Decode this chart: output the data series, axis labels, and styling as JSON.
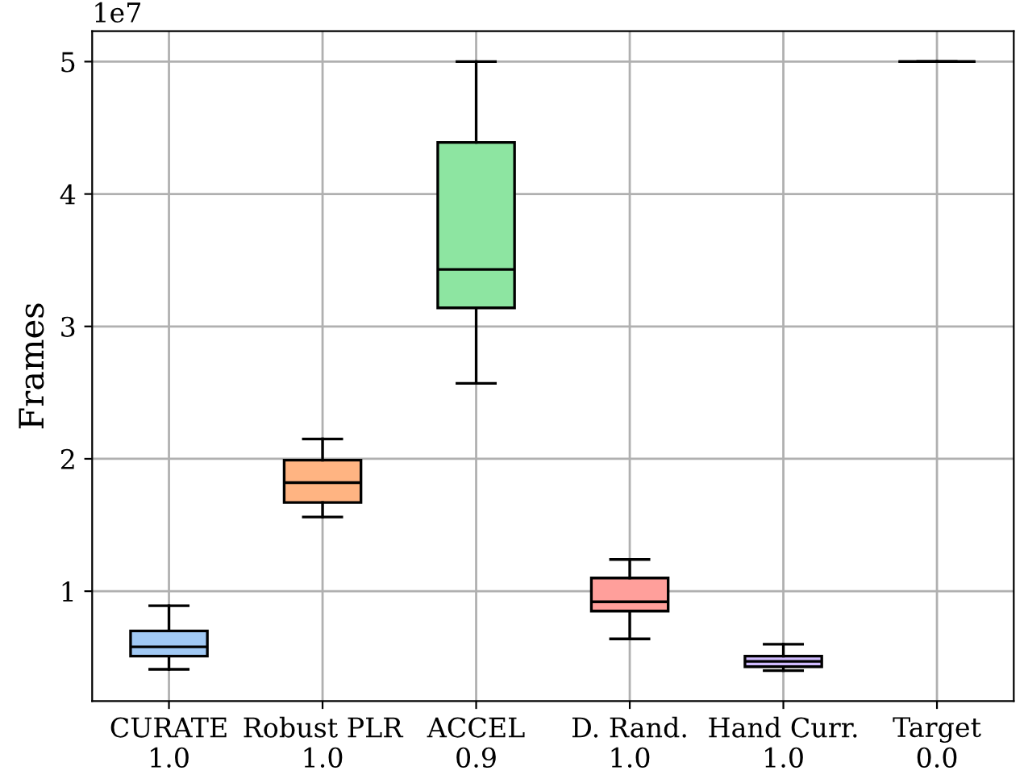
{
  "chart_data": {
    "type": "box",
    "ylabel": "Frames",
    "annotations": [
      "1e7"
    ],
    "categories": [
      "CURATE\n1.0",
      "Robust PLR\n1.0",
      "ACCEL\n0.9",
      "D. Rand.\n1.0",
      "Hand Curr.\n1.0",
      "Target\n0.0"
    ],
    "colors": [
      "#a1c9f4",
      "#ffb482",
      "#8de5a1",
      "#ff9f9b",
      "#d0bbff",
      null
    ],
    "boxes": [
      {
        "low": 0.41,
        "q1": 0.51,
        "median": 0.58,
        "q3": 0.7,
        "high": 0.89
      },
      {
        "low": 1.56,
        "q1": 1.67,
        "median": 1.82,
        "q3": 1.99,
        "high": 2.15
      },
      {
        "low": 2.57,
        "q1": 3.14,
        "median": 3.43,
        "q3": 4.39,
        "high": 5.0
      },
      {
        "low": 0.64,
        "q1": 0.85,
        "median": 0.92,
        "q3": 1.1,
        "high": 1.24
      },
      {
        "low": 0.4,
        "q1": 0.43,
        "median": 0.47,
        "q3": 0.51,
        "high": 0.6
      },
      {
        "low": 5.0,
        "q1": 5.0,
        "median": 5.0,
        "q3": 5.0,
        "high": 5.0
      }
    ],
    "ylim": [
      0.17,
      5.23
    ],
    "yticks": [
      1,
      2,
      3,
      4,
      5
    ],
    "grid": true
  }
}
